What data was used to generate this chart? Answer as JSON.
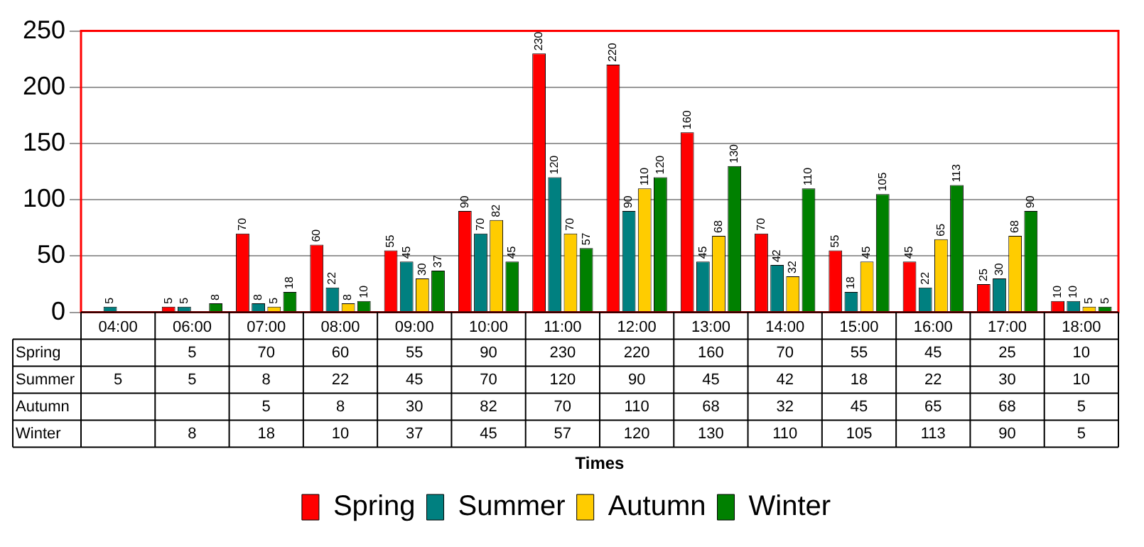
{
  "chart_data": {
    "type": "bar",
    "categories": [
      "04:00",
      "06:00",
      "07:00",
      "08:00",
      "09:00",
      "10:00",
      "11:00",
      "12:00",
      "13:00",
      "14:00",
      "15:00",
      "16:00",
      "17:00",
      "18:00"
    ],
    "series": [
      {
        "name": "Spring",
        "color": "#ff0000",
        "values": [
          null,
          5,
          70,
          60,
          55,
          90,
          230,
          220,
          160,
          70,
          55,
          45,
          25,
          10
        ]
      },
      {
        "name": "Summer",
        "color": "#008080",
        "values": [
          5,
          5,
          8,
          22,
          45,
          70,
          120,
          90,
          45,
          42,
          18,
          22,
          30,
          10
        ]
      },
      {
        "name": "Autumn",
        "color": "#ffcc00",
        "values": [
          null,
          null,
          5,
          8,
          30,
          82,
          70,
          110,
          68,
          32,
          45,
          65,
          68,
          5
        ]
      },
      {
        "name": "Winter",
        "color": "#008000",
        "values": [
          null,
          8,
          18,
          10,
          37,
          45,
          57,
          120,
          130,
          110,
          105,
          113,
          90,
          5
        ]
      }
    ],
    "annotations": [
      "Times",
      "5",
      "70",
      "60",
      "55",
      "90",
      "230",
      "220",
      "160",
      "70",
      "55",
      "45",
      "25",
      "10",
      "5",
      "5",
      "8",
      "22",
      "45",
      "70",
      "120",
      "90",
      "45",
      "42",
      "18",
      "22",
      "30",
      "10",
      "5",
      "8",
      "30",
      "82",
      "70",
      "110",
      "68",
      "32",
      "45",
      "65",
      "68",
      "5",
      "8",
      "18",
      "10",
      "37",
      "45",
      "57",
      "120",
      "130",
      "110",
      "105",
      "113",
      "90",
      "5"
    ],
    "ylim": [
      0,
      250
    ],
    "yticks": [
      0,
      50,
      100,
      150,
      200,
      250
    ],
    "grid": "y",
    "legend": "bottom",
    "data_labels": true
  }
}
